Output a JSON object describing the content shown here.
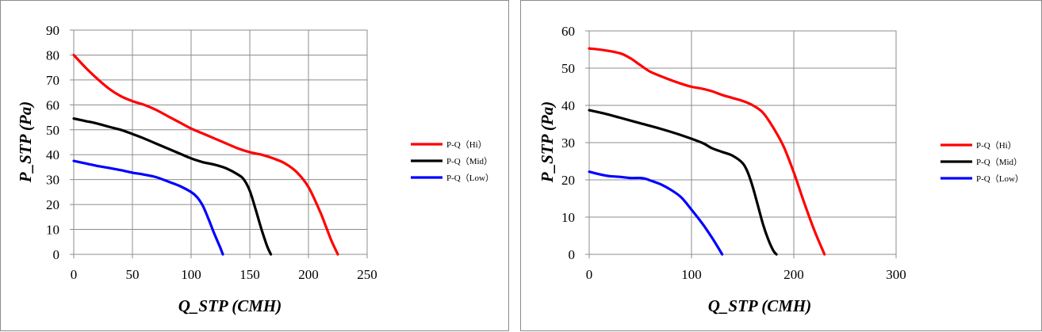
{
  "colors": {
    "hi": "#ff0000",
    "mid": "#000000",
    "low": "#0000ff",
    "grid": "#8c8c8c"
  },
  "chart_data": [
    {
      "type": "line",
      "xlabel": "Q_STP (CMH)",
      "ylabel": "P_STP (Pa)",
      "xlim": [
        0,
        250
      ],
      "ylim": [
        0,
        90
      ],
      "x_ticks": [
        "0",
        "50",
        "100",
        "150",
        "200",
        "250"
      ],
      "y_ticks": [
        "0",
        "10",
        "20",
        "30",
        "40",
        "50",
        "60",
        "70",
        "80",
        "90"
      ],
      "grid": true,
      "legend_position": "right",
      "series": [
        {
          "name": "P-Q（Hi）",
          "color": "#ff0000",
          "x": [
            0,
            10,
            20,
            30,
            40,
            50,
            60,
            70,
            80,
            90,
            100,
            110,
            120,
            130,
            140,
            150,
            160,
            170,
            180,
            190,
            200,
            210,
            215,
            220,
            225
          ],
          "y": [
            80,
            75,
            70.5,
            66.5,
            63.5,
            61.5,
            60,
            58,
            55.5,
            53,
            50.5,
            48.5,
            46.5,
            44.5,
            42.5,
            41,
            40,
            38.5,
            36.5,
            33,
            27,
            17,
            11,
            5,
            0
          ]
        },
        {
          "name": "P-Q（Mid）",
          "color": "#000000",
          "x": [
            0,
            10,
            20,
            30,
            40,
            50,
            60,
            70,
            80,
            90,
            100,
            110,
            120,
            130,
            140,
            145,
            150,
            155,
            160,
            165,
            168
          ],
          "y": [
            54.5,
            53.5,
            52.5,
            51.2,
            50,
            48.3,
            46.5,
            44.5,
            42.5,
            40.5,
            38.5,
            37,
            36,
            34.5,
            32,
            30,
            25.5,
            18,
            10,
            3,
            0
          ]
        },
        {
          "name": "P-Q（Low）",
          "color": "#0000ff",
          "x": [
            0,
            10,
            20,
            30,
            40,
            50,
            60,
            70,
            80,
            90,
            100,
            105,
            110,
            115,
            120,
            125,
            127
          ],
          "y": [
            37.5,
            36.5,
            35.5,
            34.7,
            33.8,
            32.8,
            32,
            31,
            29.3,
            27.5,
            25,
            23,
            19.5,
            14,
            8,
            2.5,
            0
          ]
        }
      ]
    },
    {
      "type": "line",
      "xlabel": "Q_STP (CMH)",
      "ylabel": "P_STP (Pa)",
      "xlim": [
        0,
        300
      ],
      "ylim": [
        0,
        60
      ],
      "x_ticks": [
        "0",
        "100",
        "200",
        "300"
      ],
      "y_ticks": [
        "0",
        "10",
        "20",
        "30",
        "40",
        "50",
        "60"
      ],
      "grid": true,
      "legend_position": "right",
      "series": [
        {
          "name": "P-Q（Hi）",
          "color": "#ff0000",
          "x": [
            0,
            15,
            30,
            40,
            50,
            60,
            75,
            90,
            100,
            110,
            120,
            130,
            140,
            150,
            160,
            170,
            180,
            190,
            200,
            210,
            220,
            230
          ],
          "y": [
            55.3,
            54.8,
            54,
            52.7,
            50.8,
            49,
            47.3,
            45.8,
            45,
            44.5,
            43.8,
            42.8,
            42,
            41.2,
            40,
            38,
            34,
            29,
            22,
            14,
            6.5,
            0
          ]
        },
        {
          "name": "P-Q（Mid）",
          "color": "#000000",
          "x": [
            0,
            15,
            30,
            50,
            70,
            90,
            110,
            120,
            130,
            140,
            150,
            155,
            160,
            165,
            170,
            175,
            180,
            183
          ],
          "y": [
            38.7,
            37.8,
            36.7,
            35.2,
            33.7,
            32,
            30,
            28.5,
            27.5,
            26.5,
            24.5,
            22,
            18,
            13,
            8,
            4,
            1,
            0
          ]
        },
        {
          "name": "P-Q（Low）",
          "color": "#0000ff",
          "x": [
            0,
            10,
            20,
            30,
            40,
            50,
            55,
            60,
            70,
            80,
            90,
            100,
            110,
            120,
            130
          ],
          "y": [
            22.2,
            21.5,
            21,
            20.8,
            20.5,
            20.5,
            20.3,
            19.8,
            18.8,
            17.3,
            15.3,
            12,
            8.5,
            4.5,
            0
          ]
        }
      ]
    }
  ]
}
